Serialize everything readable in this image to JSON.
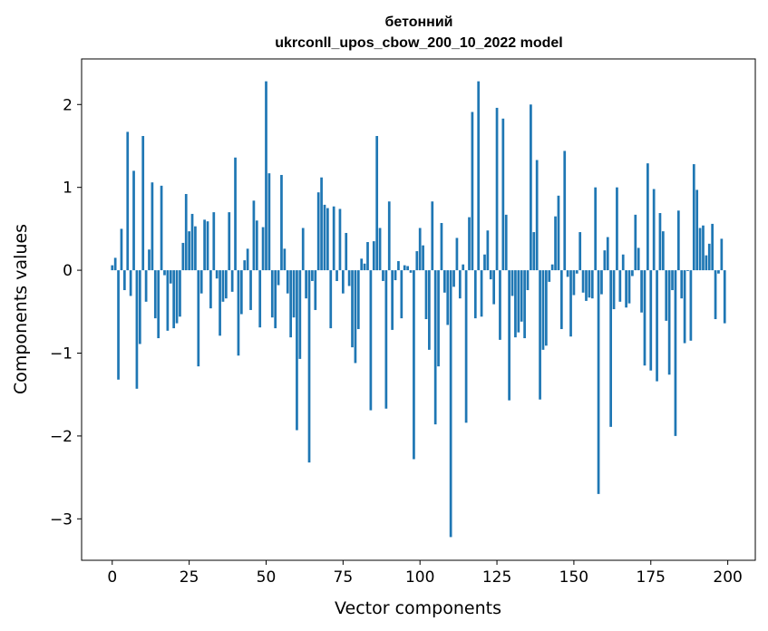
{
  "chart_data": {
    "type": "bar",
    "title_line1": "бетонний",
    "title_line2": "ukrconll_upos_cbow_200_10_2022 model",
    "xlabel": "Vector components",
    "ylabel": "Components values",
    "xlim": [
      -9.95,
      208.95
    ],
    "ylim": [
      -3.5,
      2.55
    ],
    "xticks": [
      0,
      25,
      50,
      75,
      100,
      125,
      150,
      175,
      200
    ],
    "xtick_labels": [
      "0",
      "25",
      "50",
      "75",
      "100",
      "125",
      "150",
      "175",
      "200"
    ],
    "yticks": [
      -3,
      -2,
      -1,
      0,
      1,
      2
    ],
    "ytick_labels": [
      "−3",
      "−2",
      "−1",
      "0",
      "1",
      "2"
    ],
    "bar_color": "#1f77b4",
    "grid": false,
    "x": [
      0,
      1,
      2,
      3,
      4,
      5,
      6,
      7,
      8,
      9,
      10,
      11,
      12,
      13,
      14,
      15,
      16,
      17,
      18,
      19,
      20,
      21,
      22,
      23,
      24,
      25,
      26,
      27,
      28,
      29,
      30,
      31,
      32,
      33,
      34,
      35,
      36,
      37,
      38,
      39,
      40,
      41,
      42,
      43,
      44,
      45,
      46,
      47,
      48,
      49,
      50,
      51,
      52,
      53,
      54,
      55,
      56,
      57,
      58,
      59,
      60,
      61,
      62,
      63,
      64,
      65,
      66,
      67,
      68,
      69,
      70,
      71,
      72,
      73,
      74,
      75,
      76,
      77,
      78,
      79,
      80,
      81,
      82,
      83,
      84,
      85,
      86,
      87,
      88,
      89,
      90,
      91,
      92,
      93,
      94,
      95,
      96,
      97,
      98,
      99,
      100,
      101,
      102,
      103,
      104,
      105,
      106,
      107,
      108,
      109,
      110,
      111,
      112,
      113,
      114,
      115,
      116,
      117,
      118,
      119,
      120,
      121,
      122,
      123,
      124,
      125,
      126,
      127,
      128,
      129,
      130,
      131,
      132,
      133,
      134,
      135,
      136,
      137,
      138,
      139,
      140,
      141,
      142,
      143,
      144,
      145,
      146,
      147,
      148,
      149,
      150,
      151,
      152,
      153,
      154,
      155,
      156,
      157,
      158,
      159,
      160,
      161,
      162,
      163,
      164,
      165,
      166,
      167,
      168,
      169,
      170,
      171,
      172,
      173,
      174,
      175,
      176,
      177,
      178,
      179,
      180,
      181,
      182,
      183,
      184,
      185,
      186,
      187,
      188,
      189,
      190,
      191,
      192,
      193,
      194,
      195,
      196,
      197,
      198,
      199
    ],
    "values": [
      0.06,
      0.15,
      -1.32,
      0.5,
      -0.24,
      1.67,
      -0.31,
      1.2,
      -1.43,
      -0.89,
      1.62,
      -0.38,
      0.25,
      1.06,
      -0.58,
      -0.82,
      1.02,
      -0.06,
      -0.73,
      -0.16,
      -0.7,
      -0.64,
      -0.56,
      0.33,
      0.92,
      0.47,
      0.68,
      0.53,
      -1.16,
      -0.28,
      0.61,
      0.59,
      -0.46,
      0.7,
      -0.1,
      -0.79,
      -0.38,
      -0.34,
      0.7,
      -0.26,
      1.36,
      -1.03,
      -0.53,
      0.12,
      0.26,
      -0.48,
      0.84,
      0.6,
      -0.69,
      0.52,
      2.28,
      1.17,
      -0.57,
      -0.7,
      -0.18,
      1.15,
      0.26,
      -0.28,
      -0.81,
      -0.57,
      -1.93,
      -1.07,
      0.51,
      -0.34,
      -2.32,
      -0.13,
      -0.48,
      0.94,
      1.12,
      0.79,
      0.75,
      -0.7,
      0.77,
      -0.13,
      0.74,
      -0.28,
      0.45,
      -0.19,
      -0.93,
      -1.12,
      -0.71,
      0.14,
      0.08,
      0.34,
      -1.69,
      0.35,
      1.62,
      0.51,
      -0.13,
      -1.67,
      0.83,
      -0.72,
      -0.12,
      0.11,
      -0.58,
      0.06,
      0.05,
      -0.03,
      -2.28,
      0.23,
      0.51,
      0.3,
      -0.59,
      -0.96,
      0.83,
      -1.86,
      -1.16,
      0.57,
      -0.27,
      -0.66,
      -3.22,
      -0.2,
      0.39,
      -0.34,
      0.07,
      -1.84,
      0.64,
      1.91,
      -0.58,
      2.28,
      -0.56,
      0.19,
      0.48,
      -0.11,
      -0.41,
      1.96,
      -0.84,
      1.83,
      0.67,
      -1.57,
      -0.31,
      -0.81,
      -0.75,
      -0.62,
      -0.82,
      -0.24,
      2.0,
      0.46,
      1.33,
      -1.56,
      -0.96,
      -0.91,
      -0.14,
      0.07,
      0.65,
      0.9,
      -0.71,
      1.44,
      -0.08,
      -0.8,
      -0.3,
      -0.04,
      0.46,
      -0.27,
      -0.37,
      -0.33,
      -0.34,
      1.0,
      -2.7,
      -0.29,
      0.24,
      0.4,
      -1.89,
      -0.47,
      1.0,
      -0.38,
      0.19,
      -0.45,
      -0.4,
      -0.07,
      0.67,
      0.27,
      -0.51,
      -1.15,
      1.29,
      -1.21,
      0.98,
      -1.34,
      0.69,
      0.47,
      -0.61,
      -1.26,
      -0.24,
      -2.0,
      0.72,
      -0.34,
      -0.88,
      -0.01,
      -0.85,
      1.28,
      0.97,
      0.51,
      0.54,
      0.18,
      0.32,
      0.56,
      -0.59,
      -0.04,
      0.38,
      -0.64
    ]
  }
}
